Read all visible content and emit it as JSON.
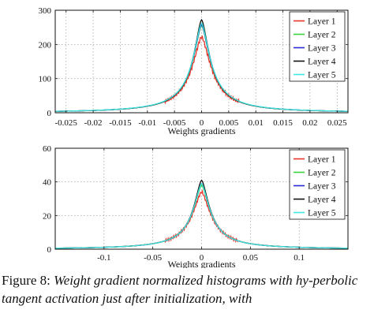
{
  "chart_data": [
    {
      "type": "line",
      "xlabel": "Weights gradients",
      "ylabel": "",
      "xlim": [
        -0.027,
        0.027
      ],
      "ylim": [
        0,
        300
      ],
      "x_ticks": [
        -0.025,
        -0.02,
        -0.015,
        -0.01,
        -0.005,
        0,
        0.005,
        0.01,
        0.015,
        0.02,
        0.025
      ],
      "x_tick_labels": [
        "-0.025",
        "-0.02",
        "-0.015",
        "-0.01",
        "-0.005",
        "0",
        "0.005",
        "0.01",
        "0.015",
        "0.02",
        "0.025"
      ],
      "y_ticks": [
        0,
        100,
        200,
        300
      ],
      "y_tick_labels": [
        "0",
        "100",
        "200",
        "300"
      ],
      "grid": true,
      "legend_position": "top-right",
      "series": [
        {
          "name": "Layer 1",
          "color": "#e8342a",
          "peak": 222,
          "width": 0.0023
        },
        {
          "name": "Layer 2",
          "color": "#38d63a",
          "peak": 255,
          "width": 0.0021
        },
        {
          "name": "Layer 3",
          "color": "#2b2bd6",
          "peak": 258,
          "width": 0.0021
        },
        {
          "name": "Layer 4",
          "color": "#111111",
          "peak": 272,
          "width": 0.002
        },
        {
          "name": "Layer 5",
          "color": "#3fe6e0",
          "peak": 262,
          "width": 0.0021
        }
      ]
    },
    {
      "type": "line",
      "xlabel": "Weights gradients",
      "ylabel": "",
      "xlim": [
        -0.15,
        0.15
      ],
      "ylim": [
        0,
        60
      ],
      "x_ticks": [
        -0.1,
        -0.05,
        0,
        0.05,
        0.1
      ],
      "x_tick_labels": [
        "-0.1",
        "-0.05",
        "0",
        "0.05",
        "0.1"
      ],
      "y_ticks": [
        0,
        20,
        40,
        60
      ],
      "y_tick_labels": [
        "0",
        "20",
        "40",
        "60"
      ],
      "grid": true,
      "legend_position": "top-right",
      "series": [
        {
          "name": "Layer 1",
          "color": "#e8342a",
          "peak": 34,
          "width": 0.0125
        },
        {
          "name": "Layer 2",
          "color": "#38d63a",
          "peak": 38,
          "width": 0.0115
        },
        {
          "name": "Layer 3",
          "color": "#2b2bd6",
          "peak": 39,
          "width": 0.0112
        },
        {
          "name": "Layer 4",
          "color": "#111111",
          "peak": 41,
          "width": 0.0108
        },
        {
          "name": "Layer 5",
          "color": "#3fe6e0",
          "peak": 39,
          "width": 0.0112
        }
      ]
    }
  ],
  "caption": {
    "lead": "Figure 8:",
    "body": "Weight gradient normalized histograms with hy-perbolic tangent activation just after initialization, with"
  }
}
